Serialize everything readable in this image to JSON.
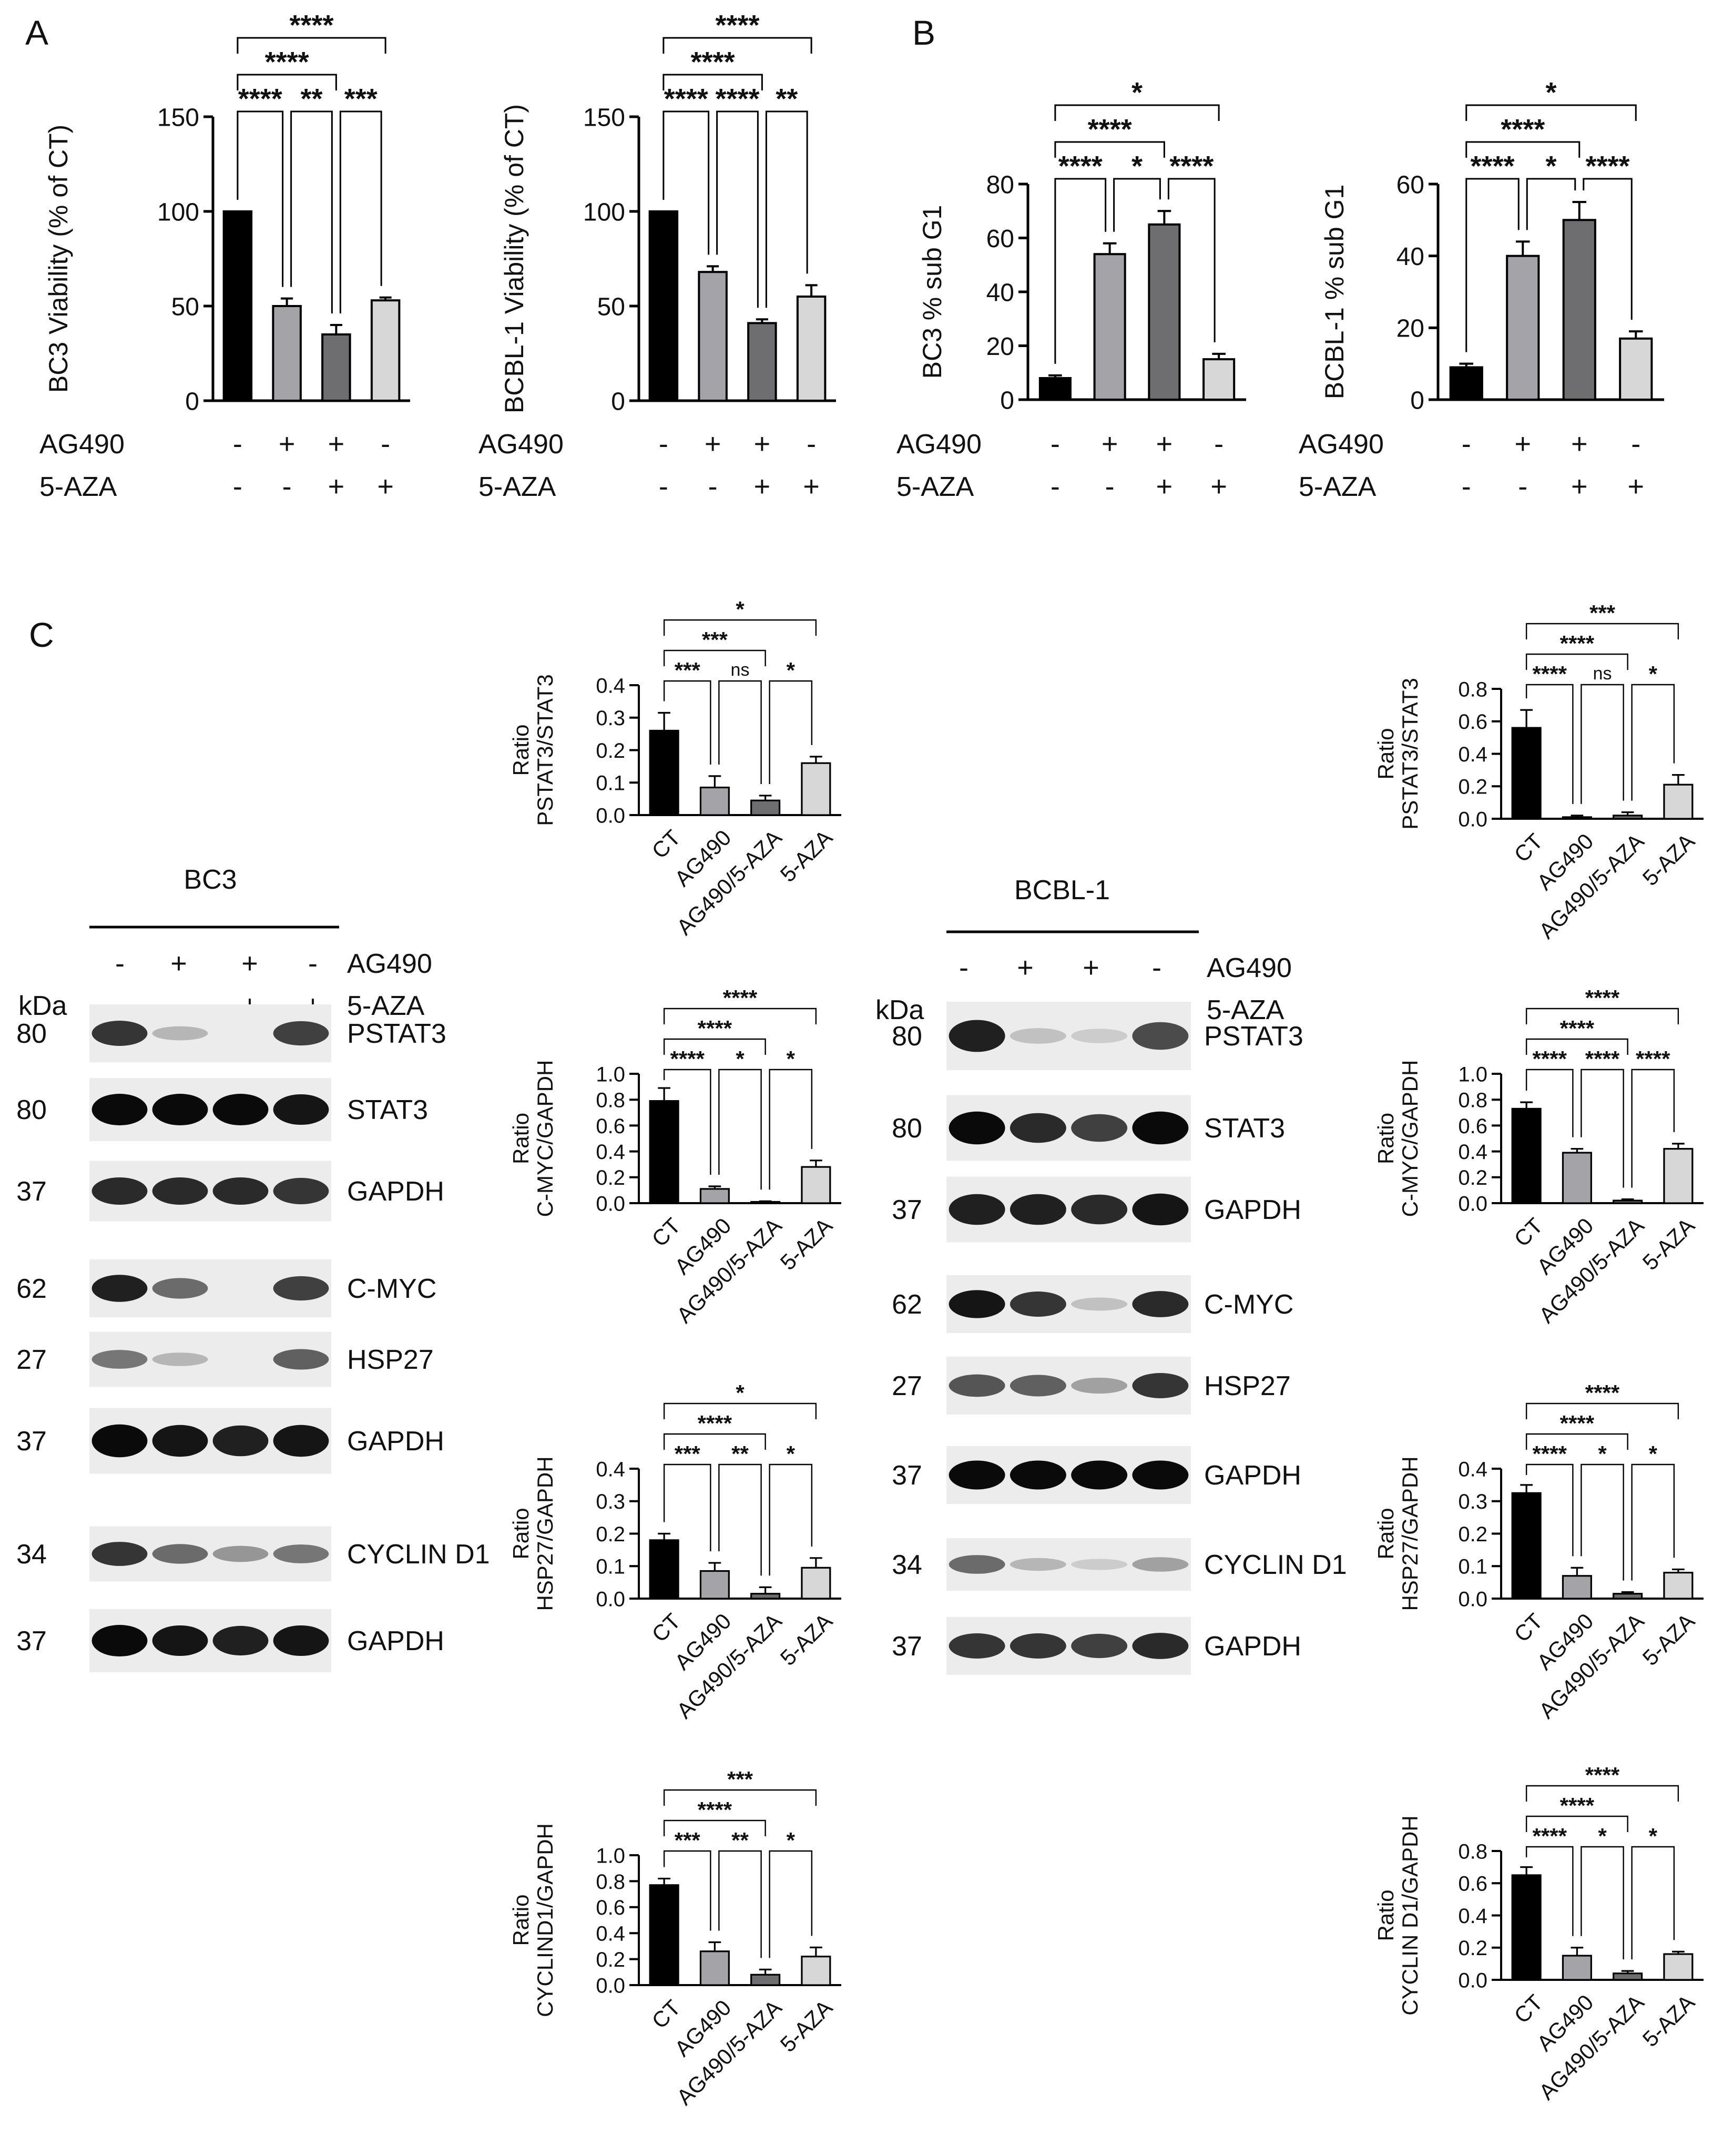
{
  "panel_letters": {
    "a": "A",
    "b": "B",
    "c": "C"
  },
  "treatment_labels": {
    "ag490": "AG490",
    "aza": "5-AZA"
  },
  "chart_data": [
    {
      "id": "bc3-viability",
      "type": "bar",
      "panel": "A",
      "ylabel": "BC3 Viability (% of CT)",
      "ylim": [
        0,
        150
      ],
      "yticks": [
        "0",
        "50",
        "100",
        "150"
      ],
      "ag490": [
        "-",
        "+",
        "+",
        "-"
      ],
      "aza": [
        "-",
        "-",
        "+",
        "+"
      ],
      "values": [
        100,
        50,
        35,
        53
      ],
      "errors": [
        0,
        4,
        5,
        1.5
      ],
      "colors": [
        "#000000",
        "#a3a3a8",
        "#6e6e70",
        "#d7d7d7"
      ],
      "sig": [
        {
          "from": 0,
          "to": 1,
          "label": "****"
        },
        {
          "from": 1,
          "to": 2,
          "label": "**"
        },
        {
          "from": 2,
          "to": 3,
          "label": "***"
        },
        {
          "from": 0,
          "to": 2,
          "label": "****"
        },
        {
          "from": 0,
          "to": 3,
          "label": "****"
        }
      ]
    },
    {
      "id": "bcbl1-viability",
      "type": "bar",
      "panel": "A",
      "ylabel": "BCBL-1 Viability (% of CT)",
      "ylim": [
        0,
        150
      ],
      "yticks": [
        "0",
        "50",
        "100",
        "150"
      ],
      "ag490": [
        "-",
        "+",
        "+",
        "-"
      ],
      "aza": [
        "-",
        "-",
        "+",
        "+"
      ],
      "values": [
        100,
        68,
        41,
        55
      ],
      "errors": [
        0,
        3,
        2,
        6
      ],
      "colors": [
        "#000000",
        "#a3a3a8",
        "#6e6e70",
        "#d7d7d7"
      ],
      "sig": [
        {
          "from": 0,
          "to": 1,
          "label": "****"
        },
        {
          "from": 1,
          "to": 2,
          "label": "****"
        },
        {
          "from": 2,
          "to": 3,
          "label": "**"
        },
        {
          "from": 0,
          "to": 2,
          "label": "****"
        },
        {
          "from": 0,
          "to": 3,
          "label": "****"
        }
      ]
    },
    {
      "id": "bc3-subg1",
      "type": "bar",
      "panel": "B",
      "ylabel": "BC3 % sub G1",
      "ylim": [
        0,
        80
      ],
      "yticks": [
        "0",
        "20",
        "40",
        "60",
        "80"
      ],
      "ag490": [
        "-",
        "+",
        "+",
        "-"
      ],
      "aza": [
        "-",
        "-",
        "+",
        "+"
      ],
      "values": [
        8,
        54,
        65,
        15
      ],
      "errors": [
        1,
        4,
        5,
        2
      ],
      "colors": [
        "#000000",
        "#a3a3a8",
        "#6e6e70",
        "#d7d7d7"
      ],
      "sig": [
        {
          "from": 0,
          "to": 1,
          "label": "****"
        },
        {
          "from": 1,
          "to": 2,
          "label": "*"
        },
        {
          "from": 2,
          "to": 3,
          "label": "****"
        },
        {
          "from": 0,
          "to": 2,
          "label": "****"
        },
        {
          "from": 0,
          "to": 3,
          "label": "*"
        }
      ]
    },
    {
      "id": "bcbl1-subg1",
      "type": "bar",
      "panel": "B",
      "ylabel": "BCBL-1 % sub G1",
      "ylim": [
        0,
        60
      ],
      "yticks": [
        "0",
        "20",
        "40",
        "60"
      ],
      "ag490": [
        "-",
        "+",
        "+",
        "-"
      ],
      "aza": [
        "-",
        "-",
        "+",
        "+"
      ],
      "values": [
        9,
        40,
        50,
        17
      ],
      "errors": [
        1,
        4,
        5,
        2
      ],
      "colors": [
        "#000000",
        "#a3a3a8",
        "#6e6e70",
        "#d7d7d7"
      ],
      "sig": [
        {
          "from": 0,
          "to": 1,
          "label": "****"
        },
        {
          "from": 1,
          "to": 2,
          "label": "*"
        },
        {
          "from": 2,
          "to": 3,
          "label": "****"
        },
        {
          "from": 0,
          "to": 2,
          "label": "****"
        },
        {
          "from": 0,
          "to": 3,
          "label": "*"
        }
      ]
    },
    {
      "id": "bc3-pstat3",
      "type": "bar",
      "panel": "C",
      "ylabel": [
        "Ratio",
        "PSTAT3/STAT3"
      ],
      "ylim": [
        0,
        0.4
      ],
      "yticks": [
        "0.0",
        "0.1",
        "0.2",
        "0.3",
        "0.4"
      ],
      "categories": [
        "CT",
        "AG490",
        "AG490/5-AZA",
        "5-AZA"
      ],
      "values": [
        0.26,
        0.085,
        0.045,
        0.16
      ],
      "errors": [
        0.055,
        0.035,
        0.015,
        0.02
      ],
      "colors": [
        "#000000",
        "#a3a3a8",
        "#6e6e70",
        "#d7d7d7"
      ],
      "sig": [
        {
          "from": 0,
          "to": 1,
          "label": "***"
        },
        {
          "from": 1,
          "to": 2,
          "label": "ns"
        },
        {
          "from": 2,
          "to": 3,
          "label": "*"
        },
        {
          "from": 0,
          "to": 2,
          "label": "***"
        },
        {
          "from": 0,
          "to": 3,
          "label": "*"
        }
      ]
    },
    {
      "id": "bc3-cmyc",
      "type": "bar",
      "panel": "C",
      "ylabel": [
        "Ratio",
        "C-MYC/GAPDH"
      ],
      "ylim": [
        0,
        1.0
      ],
      "yticks": [
        "0.0",
        "0.2",
        "0.4",
        "0.6",
        "0.8",
        "1.0"
      ],
      "categories": [
        "CT",
        "AG490",
        "AG490/5-AZA",
        "5-AZA"
      ],
      "values": [
        0.79,
        0.11,
        0.01,
        0.28
      ],
      "errors": [
        0.1,
        0.02,
        0.005,
        0.05
      ],
      "colors": [
        "#000000",
        "#a3a3a8",
        "#6e6e70",
        "#d7d7d7"
      ],
      "sig": [
        {
          "from": 0,
          "to": 1,
          "label": "****"
        },
        {
          "from": 1,
          "to": 2,
          "label": "*"
        },
        {
          "from": 2,
          "to": 3,
          "label": "*"
        },
        {
          "from": 0,
          "to": 2,
          "label": "****"
        },
        {
          "from": 0,
          "to": 3,
          "label": "****"
        }
      ]
    },
    {
      "id": "bc3-hsp27",
      "type": "bar",
      "panel": "C",
      "ylabel": [
        "Ratio",
        "HSP27/GAPDH"
      ],
      "ylim": [
        0,
        0.4
      ],
      "yticks": [
        "0.0",
        "0.1",
        "0.2",
        "0.3",
        "0.4"
      ],
      "categories": [
        "CT",
        "AG490",
        "AG490/5-AZA",
        "5-AZA"
      ],
      "values": [
        0.18,
        0.085,
        0.015,
        0.095
      ],
      "errors": [
        0.02,
        0.025,
        0.02,
        0.03
      ],
      "colors": [
        "#000000",
        "#a3a3a8",
        "#6e6e70",
        "#d7d7d7"
      ],
      "sig": [
        {
          "from": 0,
          "to": 1,
          "label": "***"
        },
        {
          "from": 1,
          "to": 2,
          "label": "**"
        },
        {
          "from": 2,
          "to": 3,
          "label": "*"
        },
        {
          "from": 0,
          "to": 2,
          "label": "****"
        },
        {
          "from": 0,
          "to": 3,
          "label": "*"
        }
      ]
    },
    {
      "id": "bc3-cyclind1",
      "type": "bar",
      "panel": "C",
      "ylabel": [
        "Ratio",
        "CYCLIND1/GAPDH"
      ],
      "ylim": [
        0,
        1.0
      ],
      "yticks": [
        "0.0",
        "0.2",
        "0.4",
        "0.6",
        "0.8",
        "1.0"
      ],
      "categories": [
        "CT",
        "AG490",
        "AG490/5-AZA",
        "5-AZA"
      ],
      "values": [
        0.77,
        0.26,
        0.08,
        0.22
      ],
      "errors": [
        0.05,
        0.07,
        0.04,
        0.07
      ],
      "colors": [
        "#000000",
        "#a3a3a8",
        "#6e6e70",
        "#d7d7d7"
      ],
      "sig": [
        {
          "from": 0,
          "to": 1,
          "label": "***"
        },
        {
          "from": 1,
          "to": 2,
          "label": "**"
        },
        {
          "from": 2,
          "to": 3,
          "label": "*"
        },
        {
          "from": 0,
          "to": 2,
          "label": "****"
        },
        {
          "from": 0,
          "to": 3,
          "label": "***"
        }
      ]
    },
    {
      "id": "bcbl1-pstat3",
      "type": "bar",
      "panel": "C",
      "ylabel": [
        "Ratio",
        "PSTAT3/STAT3"
      ],
      "ylim": [
        0,
        0.8
      ],
      "yticks": [
        "0.0",
        "0.2",
        "0.4",
        "0.6",
        "0.8"
      ],
      "categories": [
        "CT",
        "AG490",
        "AG490/5-AZA",
        "5-AZA"
      ],
      "values": [
        0.56,
        0.01,
        0.02,
        0.21
      ],
      "errors": [
        0.11,
        0.01,
        0.02,
        0.06
      ],
      "colors": [
        "#000000",
        "#a3a3a8",
        "#6e6e70",
        "#d7d7d7"
      ],
      "sig": [
        {
          "from": 0,
          "to": 1,
          "label": "****"
        },
        {
          "from": 1,
          "to": 2,
          "label": "ns"
        },
        {
          "from": 2,
          "to": 3,
          "label": "*"
        },
        {
          "from": 0,
          "to": 2,
          "label": "****"
        },
        {
          "from": 0,
          "to": 3,
          "label": "***"
        }
      ]
    },
    {
      "id": "bcbl1-cmyc",
      "type": "bar",
      "panel": "C",
      "ylabel": [
        "Ratio",
        "C-MYC/GAPDH"
      ],
      "ylim": [
        0,
        1.0
      ],
      "yticks": [
        "0.0",
        "0.2",
        "0.4",
        "0.6",
        "0.8",
        "1.0"
      ],
      "categories": [
        "CT",
        "AG490",
        "AG490/5-AZA",
        "5-AZA"
      ],
      "values": [
        0.73,
        0.39,
        0.02,
        0.42
      ],
      "errors": [
        0.05,
        0.03,
        0.01,
        0.04
      ],
      "colors": [
        "#000000",
        "#a3a3a8",
        "#6e6e70",
        "#d7d7d7"
      ],
      "sig": [
        {
          "from": 0,
          "to": 1,
          "label": "****"
        },
        {
          "from": 1,
          "to": 2,
          "label": "****"
        },
        {
          "from": 2,
          "to": 3,
          "label": "****"
        },
        {
          "from": 0,
          "to": 2,
          "label": "****"
        },
        {
          "from": 0,
          "to": 3,
          "label": "****"
        }
      ]
    },
    {
      "id": "bcbl1-hsp27",
      "type": "bar",
      "panel": "C",
      "ylabel": [
        "Ratio",
        "HSP27/GAPDH"
      ],
      "ylim": [
        0,
        0.4
      ],
      "yticks": [
        "0.0",
        "0.1",
        "0.2",
        "0.3",
        "0.4"
      ],
      "categories": [
        "CT",
        "AG490",
        "AG490/5-AZA",
        "5-AZA"
      ],
      "values": [
        0.325,
        0.07,
        0.015,
        0.08
      ],
      "errors": [
        0.025,
        0.025,
        0.005,
        0.01
      ],
      "colors": [
        "#000000",
        "#a3a3a8",
        "#6e6e70",
        "#d7d7d7"
      ],
      "sig": [
        {
          "from": 0,
          "to": 1,
          "label": "****"
        },
        {
          "from": 1,
          "to": 2,
          "label": "*"
        },
        {
          "from": 2,
          "to": 3,
          "label": "*"
        },
        {
          "from": 0,
          "to": 2,
          "label": "****"
        },
        {
          "from": 0,
          "to": 3,
          "label": "****"
        }
      ]
    },
    {
      "id": "bcbl1-cyclind1",
      "type": "bar",
      "panel": "C",
      "ylabel": [
        "Ratio",
        "CYCLIN D1/GAPDH"
      ],
      "ylim": [
        0,
        0.8
      ],
      "yticks": [
        "0.0",
        "0.2",
        "0.4",
        "0.6",
        "0.8"
      ],
      "categories": [
        "CT",
        "AG490",
        "AG490/5-AZA",
        "5-AZA"
      ],
      "values": [
        0.65,
        0.15,
        0.04,
        0.16
      ],
      "errors": [
        0.05,
        0.05,
        0.015,
        0.015
      ],
      "colors": [
        "#000000",
        "#a3a3a8",
        "#6e6e70",
        "#d7d7d7"
      ],
      "sig": [
        {
          "from": 0,
          "to": 1,
          "label": "****"
        },
        {
          "from": 1,
          "to": 2,
          "label": "*"
        },
        {
          "from": 2,
          "to": 3,
          "label": "*"
        },
        {
          "from": 0,
          "to": 2,
          "label": "****"
        },
        {
          "from": 0,
          "to": 3,
          "label": "****"
        }
      ]
    }
  ],
  "blots": [
    {
      "id": "bc3-blot",
      "cell_line": "BC3",
      "kda_label": "kDa",
      "ag490": [
        "-",
        "+",
        "+",
        "-"
      ],
      "aza": [
        "-",
        "-",
        "+",
        "+"
      ],
      "rows": [
        {
          "kda": "80",
          "protein": "PSTAT3",
          "bands": [
            0.8,
            0.2,
            0,
            0.75
          ]
        },
        {
          "kda": "80",
          "protein": "STAT3",
          "bands": [
            1,
            1,
            1,
            0.95
          ]
        },
        {
          "kda": "37",
          "protein": "GAPDH",
          "bands": [
            0.85,
            0.85,
            0.85,
            0.8
          ]
        },
        {
          "kda": "62",
          "protein": "C-MYC",
          "bands": [
            0.9,
            0.55,
            0,
            0.75
          ]
        },
        {
          "kda": "27",
          "protein": "HSP27",
          "bands": [
            0.5,
            0.2,
            0,
            0.6
          ]
        },
        {
          "kda": "37",
          "protein": "GAPDH",
          "bands": [
            1,
            0.95,
            0.9,
            0.95
          ]
        },
        {
          "kda": "34",
          "protein": "CYCLIN D1",
          "bands": [
            0.8,
            0.55,
            0.35,
            0.5
          ]
        },
        {
          "kda": "37",
          "protein": "GAPDH",
          "bands": [
            1,
            0.95,
            0.9,
            0.95
          ]
        }
      ]
    },
    {
      "id": "bcbl1-blot",
      "cell_line": "BCBL-1",
      "kda_label": "kDa",
      "ag490": [
        "-",
        "+",
        "+",
        "-"
      ],
      "aza": [
        "-",
        "-",
        "+",
        "+"
      ],
      "rows": [
        {
          "kda": "80",
          "protein": "PSTAT3",
          "bands": [
            0.9,
            0.15,
            0.1,
            0.7
          ]
        },
        {
          "kda": "80",
          "protein": "STAT3",
          "bands": [
            1,
            0.85,
            0.75,
            1
          ]
        },
        {
          "kda": "37",
          "protein": "GAPDH",
          "bands": [
            0.9,
            0.9,
            0.85,
            0.95
          ]
        },
        {
          "kda": "62",
          "protein": "C-MYC",
          "bands": [
            0.95,
            0.8,
            0.15,
            0.85
          ]
        },
        {
          "kda": "27",
          "protein": "HSP27",
          "bands": [
            0.65,
            0.6,
            0.3,
            0.8
          ]
        },
        {
          "kda": "37",
          "protein": "GAPDH",
          "bands": [
            1,
            1,
            1,
            1
          ]
        },
        {
          "kda": "34",
          "protein": "CYCLIN D1",
          "bands": [
            0.55,
            0.2,
            0.1,
            0.3
          ]
        },
        {
          "kda": "37",
          "protein": "GAPDH",
          "bands": [
            0.8,
            0.8,
            0.75,
            0.85
          ]
        }
      ]
    }
  ]
}
